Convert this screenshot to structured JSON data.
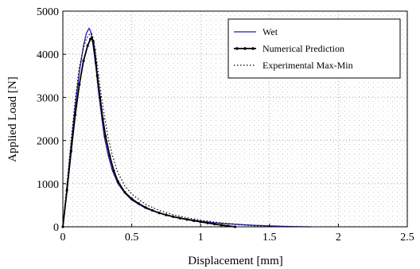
{
  "chart_data": {
    "type": "line",
    "title": "",
    "xlabel": "Displacement [mm]",
    "ylabel": "Applied Load [N]",
    "xlim": [
      0,
      2.5
    ],
    "ylim": [
      0,
      5000
    ],
    "xticks": [
      "0",
      "0.5",
      "1",
      "1.5",
      "2",
      "2.5"
    ],
    "yticks": [
      "0",
      "1000",
      "2000",
      "3000",
      "4000",
      "5000"
    ],
    "grid": true,
    "legend_position": "top-right",
    "series": [
      {
        "name": "Wet",
        "color": "#1f1fb4",
        "style": "solid",
        "x": [
          0,
          0.03,
          0.06,
          0.09,
          0.12,
          0.15,
          0.17,
          0.19,
          0.2,
          0.21,
          0.22,
          0.24,
          0.26,
          0.28,
          0.3,
          0.33,
          0.36,
          0.4,
          0.45,
          0.5,
          0.6,
          0.7,
          0.8,
          0.9,
          1.0,
          1.1,
          1.2,
          1.3,
          1.4,
          1.5,
          1.6,
          1.7,
          1.8
        ],
        "y": [
          0,
          900,
          1900,
          2800,
          3600,
          4200,
          4480,
          4600,
          4550,
          4400,
          4200,
          3700,
          3100,
          2600,
          2100,
          1650,
          1300,
          1000,
          780,
          620,
          430,
          320,
          240,
          180,
          130,
          95,
          70,
          50,
          35,
          22,
          12,
          5,
          0
        ]
      },
      {
        "name": "Numerical Prediction",
        "color": "#000000",
        "style": "solid-marker",
        "x": [
          0,
          0.03,
          0.06,
          0.09,
          0.12,
          0.15,
          0.18,
          0.2,
          0.21,
          0.22,
          0.23,
          0.24,
          0.25,
          0.27,
          0.29,
          0.31,
          0.34,
          0.37,
          0.4,
          0.45,
          0.5,
          0.55,
          0.6,
          0.65,
          0.7,
          0.75,
          0.8,
          0.85,
          0.9,
          0.95,
          1.0,
          1.05,
          1.1,
          1.15,
          1.2,
          1.25
        ],
        "y": [
          0,
          850,
          1750,
          2600,
          3300,
          3850,
          4200,
          4350,
          4380,
          4300,
          4100,
          3800,
          3500,
          3000,
          2500,
          2100,
          1650,
          1300,
          1050,
          800,
          650,
          540,
          450,
          380,
          320,
          275,
          235,
          200,
          170,
          140,
          115,
          90,
          65,
          40,
          20,
          0
        ]
      },
      {
        "name": "Experimental Max-Min",
        "color": "#000000",
        "style": "dotted",
        "x": [
          0,
          0.03,
          0.06,
          0.09,
          0.12,
          0.15,
          0.17,
          0.19,
          0.21,
          0.22,
          0.23,
          0.25,
          0.27,
          0.3,
          0.33,
          0.36,
          0.4,
          0.45,
          0.5,
          0.6,
          0.7,
          0.8,
          0.9,
          1.0,
          1.1,
          1.2,
          1.3,
          1.4,
          1.5
        ],
        "y": [
          0,
          1000,
          2000,
          2950,
          3700,
          4150,
          4350,
          4450,
          4480,
          4380,
          4200,
          3750,
          3250,
          2600,
          2050,
          1650,
          1250,
          950,
          760,
          520,
          380,
          280,
          210,
          155,
          110,
          75,
          45,
          20,
          0
        ]
      }
    ]
  }
}
